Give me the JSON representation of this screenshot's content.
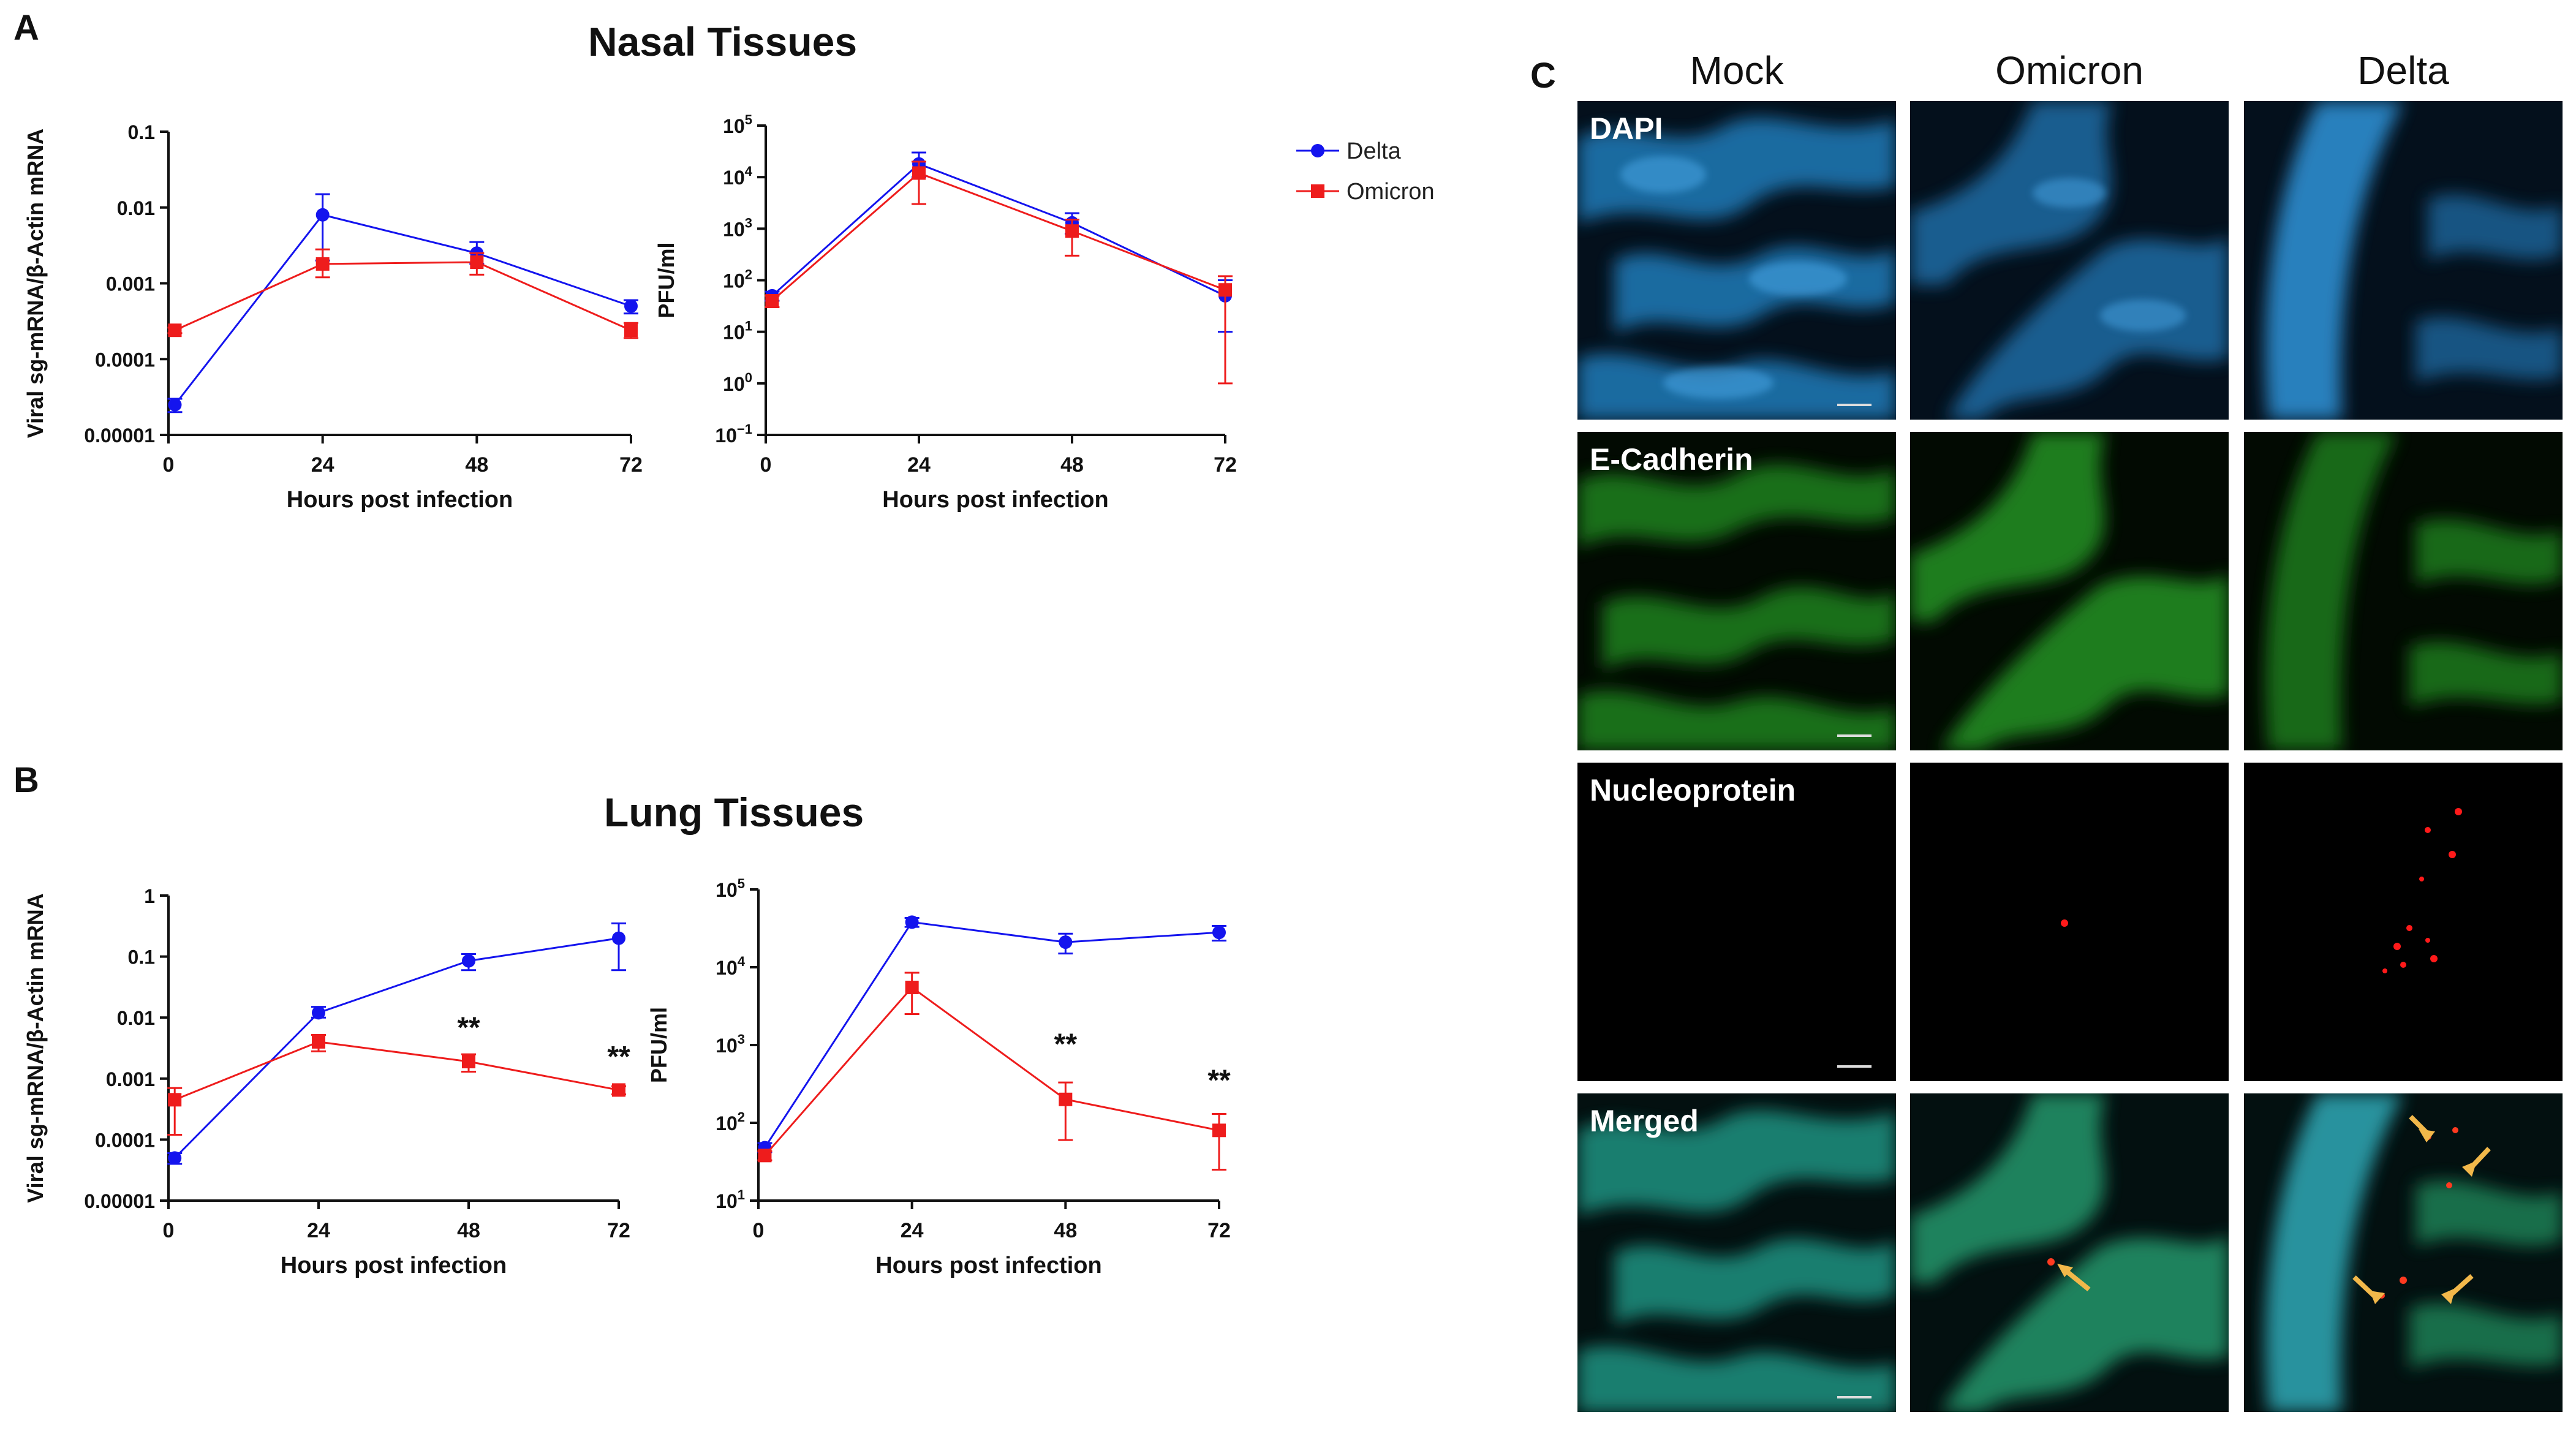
{
  "panels": {
    "a": "A",
    "b": "B",
    "c": "C"
  },
  "sections": {
    "nasal": "Nasal Tissues",
    "lung": "Lung Tissues"
  },
  "legend": [
    {
      "name": "Delta",
      "color": "#1414ee",
      "marker": "circle"
    },
    {
      "name": "Omicron",
      "color": "#ee1c1c",
      "marker": "square"
    }
  ],
  "micrograph": {
    "columns": [
      "Mock",
      "Omicron",
      "Delta"
    ],
    "rows": [
      "DAPI",
      "E-Cadherin",
      "Nucleoprotein",
      "Merged"
    ]
  },
  "chart_data": [
    {
      "id": "nasal_mrna",
      "type": "line",
      "yscale": "log",
      "xlabel": "Hours post infection",
      "ylabel": "Viral sg-mRNA/β-Actin mRNA",
      "xlim": [
        0,
        72
      ],
      "ylim": [
        1e-05,
        0.1
      ],
      "xticks": [
        0,
        24,
        48,
        72
      ],
      "yticks": [
        {
          "v": 1e-05,
          "label": "0.00001"
        },
        {
          "v": 0.0001,
          "label": "0.0001"
        },
        {
          "v": 0.001,
          "label": "0.001"
        },
        {
          "v": 0.01,
          "label": "0.01"
        },
        {
          "v": 0.1,
          "label": "0.1"
        }
      ],
      "x": [
        1,
        24,
        48,
        72
      ],
      "series": [
        {
          "name": "Delta",
          "color": "#1414ee",
          "marker": "circle",
          "values": [
            2.5e-05,
            0.008,
            0.0025,
            0.0005
          ],
          "err_low": [
            2e-05,
            0.002,
            0.0018,
            0.0004
          ],
          "err_high": [
            3e-05,
            0.015,
            0.0035,
            0.0006
          ]
        },
        {
          "name": "Omicron",
          "color": "#ee1c1c",
          "marker": "square",
          "values": [
            0.00024,
            0.0018,
            0.0019,
            0.00024
          ],
          "err_low": [
            0.00022,
            0.0012,
            0.0013,
            0.00019
          ],
          "err_high": [
            0.00026,
            0.0028,
            0.0025,
            0.0003
          ]
        }
      ],
      "annotations": []
    },
    {
      "id": "nasal_pfu",
      "type": "line",
      "yscale": "log",
      "xlabel": "Hours post infection",
      "ylabel": "PFU/ml",
      "xlim": [
        0,
        72
      ],
      "ylim": [
        0.1,
        100000
      ],
      "xticks": [
        0,
        24,
        48,
        72
      ],
      "yticks": [
        {
          "v": 0.1,
          "base": "10",
          "exp": "−1"
        },
        {
          "v": 1,
          "base": "10",
          "exp": "0"
        },
        {
          "v": 10,
          "base": "10",
          "exp": "1"
        },
        {
          "v": 100,
          "base": "10",
          "exp": "2"
        },
        {
          "v": 1000,
          "base": "10",
          "exp": "3"
        },
        {
          "v": 10000,
          "base": "10",
          "exp": "4"
        },
        {
          "v": 100000,
          "base": "10",
          "exp": "5"
        }
      ],
      "x": [
        1,
        24,
        48,
        72
      ],
      "series": [
        {
          "name": "Delta",
          "color": "#1414ee",
          "marker": "circle",
          "values": [
            50,
            18000,
            1300,
            50
          ],
          "err_low": [
            40,
            10000,
            800,
            10
          ],
          "err_high": [
            60,
            30000,
            2000,
            100
          ]
        },
        {
          "name": "Omicron",
          "color": "#ee1c1c",
          "marker": "square",
          "values": [
            40,
            12000,
            900,
            65
          ],
          "err_low": [
            30,
            3000,
            300,
            1
          ],
          "err_high": [
            50,
            20000,
            1500,
            120
          ]
        }
      ],
      "annotations": []
    },
    {
      "id": "lung_mrna",
      "type": "line",
      "yscale": "log",
      "xlabel": "Hours post infection",
      "ylabel": "Viral sg-mRNA/β-Actin mRNA",
      "xlim": [
        0,
        72
      ],
      "ylim": [
        1e-05,
        1
      ],
      "xticks": [
        0,
        24,
        48,
        72
      ],
      "yticks": [
        {
          "v": 1e-05,
          "label": "0.00001"
        },
        {
          "v": 0.0001,
          "label": "0.0001"
        },
        {
          "v": 0.001,
          "label": "0.001"
        },
        {
          "v": 0.01,
          "label": "0.01"
        },
        {
          "v": 0.1,
          "label": "0.1"
        },
        {
          "v": 1,
          "label": "1"
        }
      ],
      "x": [
        1,
        24,
        48,
        72
      ],
      "series": [
        {
          "name": "Delta",
          "color": "#1414ee",
          "marker": "circle",
          "values": [
            5e-05,
            0.012,
            0.085,
            0.2
          ],
          "err_low": [
            4e-05,
            0.01,
            0.06,
            0.06
          ],
          "err_high": [
            6e-05,
            0.015,
            0.11,
            0.35
          ]
        },
        {
          "name": "Omicron",
          "color": "#ee1c1c",
          "marker": "square",
          "values": [
            0.00045,
            0.004,
            0.0019,
            0.00065
          ],
          "err_low": [
            0.00012,
            0.0028,
            0.0013,
            0.00055
          ],
          "err_high": [
            0.0007,
            0.0052,
            0.0025,
            0.00075
          ]
        }
      ],
      "annotations": [
        {
          "x": 48,
          "text": "**",
          "y": 0.0075
        },
        {
          "x": 72,
          "text": "**",
          "y": 0.0025
        }
      ]
    },
    {
      "id": "lung_pfu",
      "type": "line",
      "yscale": "log",
      "xlabel": "Hours post infection",
      "ylabel": "PFU/ml",
      "xlim": [
        0,
        72
      ],
      "ylim": [
        10,
        100000
      ],
      "xticks": [
        0,
        24,
        48,
        72
      ],
      "yticks": [
        {
          "v": 10,
          "base": "10",
          "exp": "1"
        },
        {
          "v": 100,
          "base": "10",
          "exp": "2"
        },
        {
          "v": 1000,
          "base": "10",
          "exp": "3"
        },
        {
          "v": 10000,
          "base": "10",
          "exp": "4"
        },
        {
          "v": 100000,
          "base": "10",
          "exp": "5"
        }
      ],
      "x": [
        1,
        24,
        48,
        72
      ],
      "series": [
        {
          "name": "Delta",
          "color": "#1414ee",
          "marker": "circle",
          "values": [
            48,
            38000,
            21000,
            28000
          ],
          "err_low": [
            42,
            33000,
            15000,
            22000
          ],
          "err_high": [
            55,
            43000,
            27000,
            34000
          ]
        },
        {
          "name": "Omicron",
          "color": "#ee1c1c",
          "marker": "square",
          "values": [
            38,
            5500,
            200,
            80
          ],
          "err_low": [
            33,
            2500,
            60,
            25
          ],
          "err_high": [
            43,
            8500,
            330,
            130
          ]
        }
      ],
      "annotations": [
        {
          "x": 48,
          "text": "**",
          "y": 1100
        },
        {
          "x": 72,
          "text": "**",
          "y": 380
        }
      ]
    }
  ]
}
